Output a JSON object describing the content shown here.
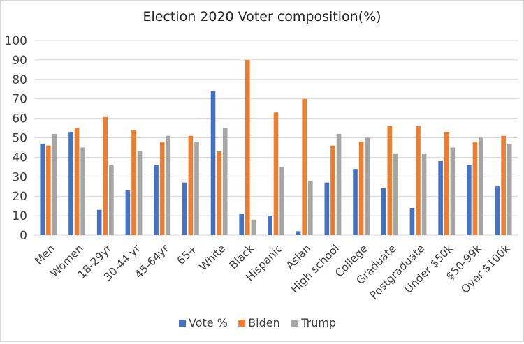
{
  "chart_data": {
    "type": "bar",
    "title": "Election 2020 Voter composition(%)",
    "xlabel": "",
    "ylabel": "",
    "ylim": [
      0,
      100
    ],
    "yticks": [
      0,
      10,
      20,
      30,
      40,
      50,
      60,
      70,
      80,
      90,
      100
    ],
    "grid": "horizontal",
    "legend": "bottom",
    "categories": [
      "Men",
      "Women",
      "18-29yr",
      "30-44 yr",
      "45-64yr",
      "65+",
      "White",
      "Black",
      "Hispanic",
      "Asian",
      "High school",
      "College",
      "Graduate",
      "Postgraduate",
      "Under $50k",
      "$50-99k",
      "Over $100k"
    ],
    "series": [
      {
        "name": "Vote %",
        "color": "#4472C4",
        "values": [
          47,
          53,
          13,
          23,
          36,
          27,
          74,
          11,
          10,
          2,
          27,
          34,
          24,
          14,
          38,
          36,
          25
        ]
      },
      {
        "name": "Biden",
        "color": "#ED7D31",
        "values": [
          46,
          55,
          61,
          54,
          48,
          51,
          43,
          90,
          63,
          70,
          46,
          48,
          56,
          56,
          53,
          48,
          51
        ]
      },
      {
        "name": "Trump",
        "color": "#A5A5A5",
        "values": [
          52,
          45,
          36,
          43,
          51,
          48,
          55,
          8,
          35,
          28,
          52,
          50,
          42,
          42,
          45,
          50,
          47
        ]
      }
    ]
  }
}
